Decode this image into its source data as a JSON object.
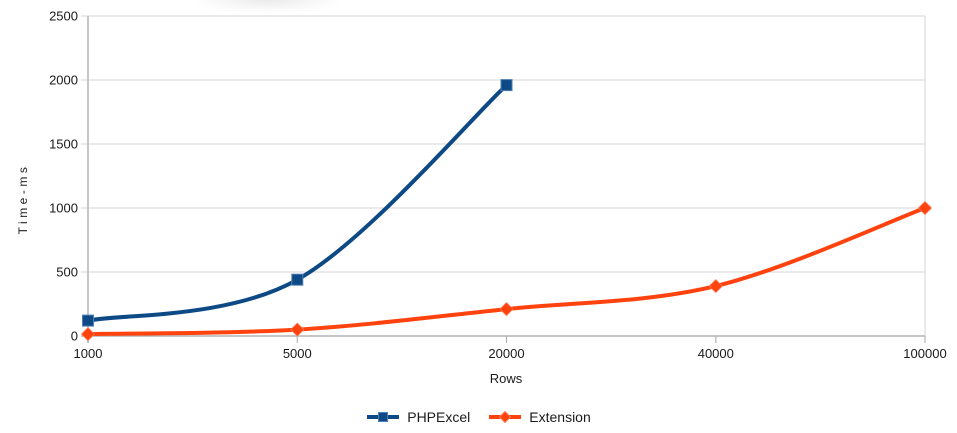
{
  "chart_data": {
    "type": "line",
    "categories": [
      "1000",
      "5000",
      "20000",
      "40000",
      "100000"
    ],
    "series": [
      {
        "name": "PHPExcel",
        "color": "#0d4a85",
        "marker": "square",
        "marker_edge": "#4d7fb3",
        "values": [
          120,
          440,
          1960,
          null,
          null
        ]
      },
      {
        "name": "Extension",
        "color": "#ff420e",
        "marker": "diamond",
        "marker_edge": "#ff7a55",
        "values": [
          15,
          50,
          210,
          390,
          1000
        ]
      }
    ],
    "title": "",
    "xlabel": "Rows",
    "ylabel": "Time-ms",
    "ylim": [
      0,
      2500
    ],
    "yticks": [
      0,
      500,
      1000,
      1500,
      2000,
      2500
    ],
    "grid": "horizontal",
    "legend_position": "bottom",
    "axis_color": "#b3b3b3",
    "gridline_color": "#d6d6d6",
    "text_color": "#1a1a1a",
    "background_color": "#ffffff"
  }
}
